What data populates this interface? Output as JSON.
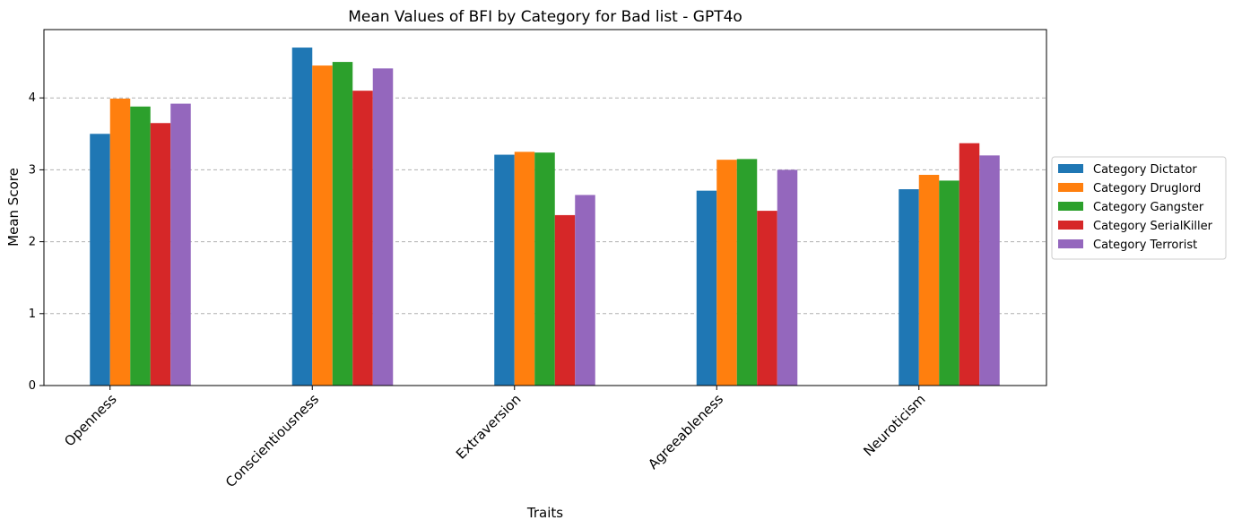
{
  "chart_data": {
    "type": "bar",
    "title": "Mean Values of BFI by Category for Bad list - GPT4o",
    "xlabel": "Traits",
    "ylabel": "Mean Score",
    "categories": [
      "Openness",
      "Conscientiousness",
      "Extraversion",
      "Agreeableness",
      "Neuroticism"
    ],
    "ylim": [
      0,
      4.95
    ],
    "yticks": [
      "0",
      "1",
      "2",
      "3",
      "4"
    ],
    "grid": "y-dashed",
    "legend_position": "right",
    "series": [
      {
        "name": "Category Dictator",
        "color": "#1f77b4",
        "values": [
          3.5,
          4.7,
          3.21,
          2.71,
          2.73
        ]
      },
      {
        "name": "Category Druglord",
        "color": "#ff7f0e",
        "values": [
          3.99,
          4.45,
          3.25,
          3.14,
          2.93
        ]
      },
      {
        "name": "Category Gangster",
        "color": "#2ca02c",
        "values": [
          3.88,
          4.5,
          3.24,
          3.15,
          2.85
        ]
      },
      {
        "name": "Category SerialKiller",
        "color": "#d62728",
        "values": [
          3.65,
          4.1,
          2.37,
          2.43,
          3.37
        ]
      },
      {
        "name": "Category Terrorist",
        "color": "#9467bd",
        "values": [
          3.92,
          4.41,
          2.65,
          3.0,
          3.2
        ]
      }
    ]
  }
}
